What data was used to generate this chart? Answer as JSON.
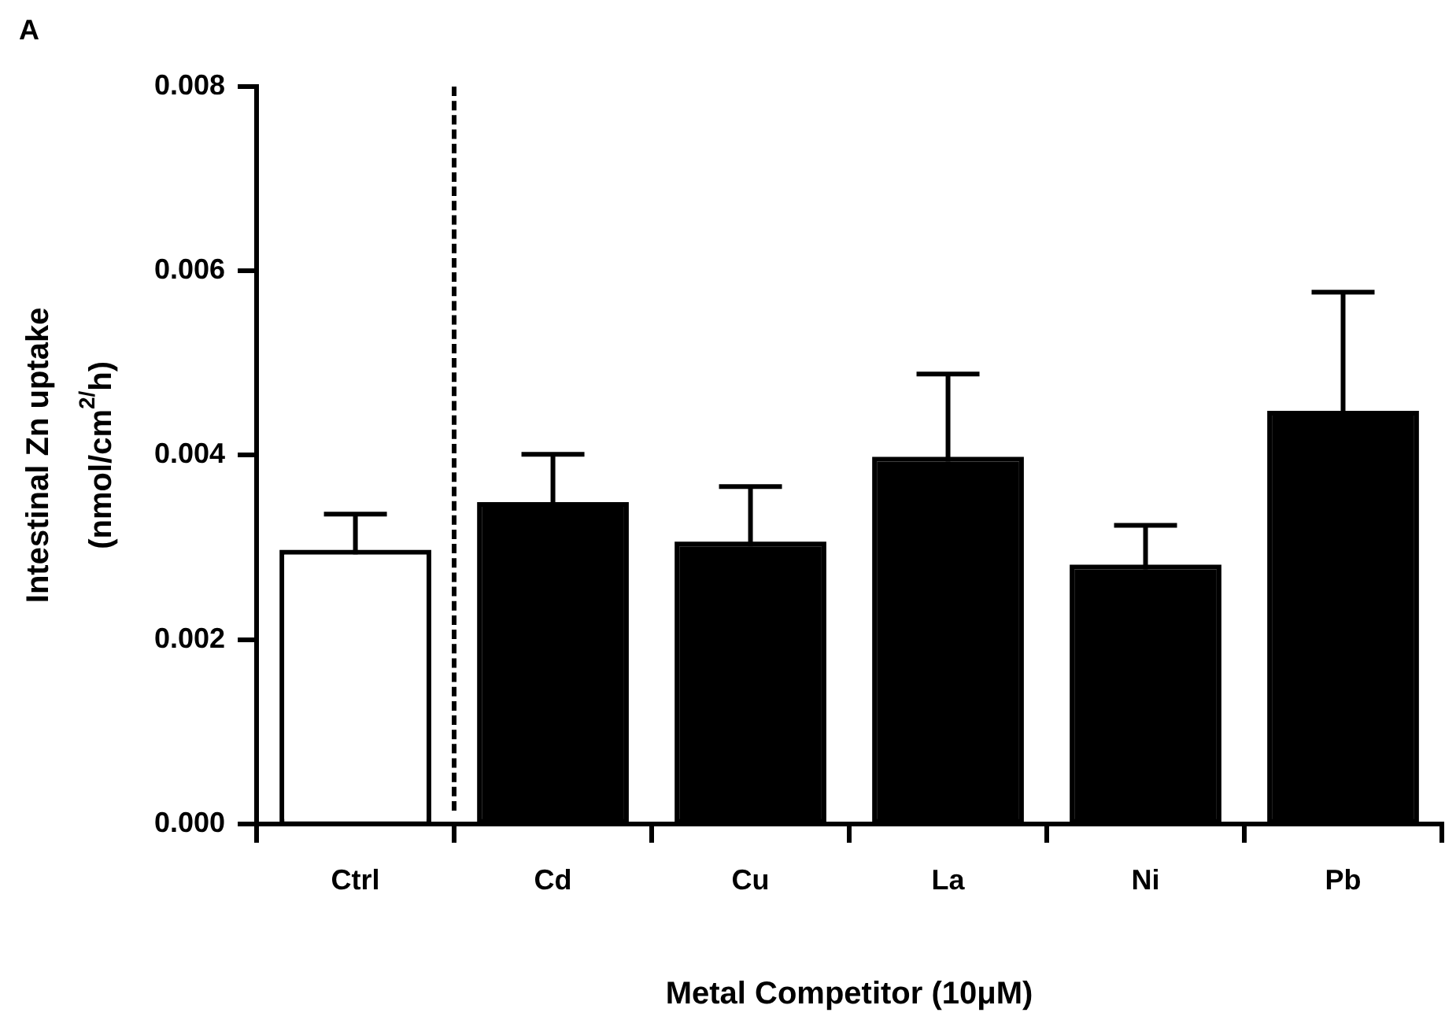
{
  "chart_data": {
    "type": "bar",
    "categories": [
      "Ctrl",
      "Cd",
      "Cu",
      "La",
      "Ni",
      "Pb"
    ],
    "values": [
      0.00292,
      0.00344,
      0.00301,
      0.00393,
      0.00276,
      0.00443
    ],
    "colors": [
      "#ffffff",
      "#000000",
      "#000000",
      "#000000",
      "#000000",
      "#000000"
    ],
    "errors": [
      [
        0.00292,
        0.00336
      ],
      [
        0.00344,
        0.00401
      ],
      [
        0.00301,
        0.00366
      ],
      [
        0.00393,
        0.00488
      ],
      [
        0.00276,
        0.00324
      ],
      [
        0.00443,
        0.00577
      ]
    ],
    "ylim": [
      0,
      0.008
    ],
    "yticks": [
      {
        "value": 0,
        "label": "0.000"
      },
      0.002,
      0.004,
      0.006,
      0.008
    ],
    "xlabel": "Metal Competitor (10μM)",
    "ylabel": "Intestinal Zn uptake\n(nmol/cm$^{2/}$h)",
    "annotations": [
      "A"
    ],
    "legend": false
  }
}
